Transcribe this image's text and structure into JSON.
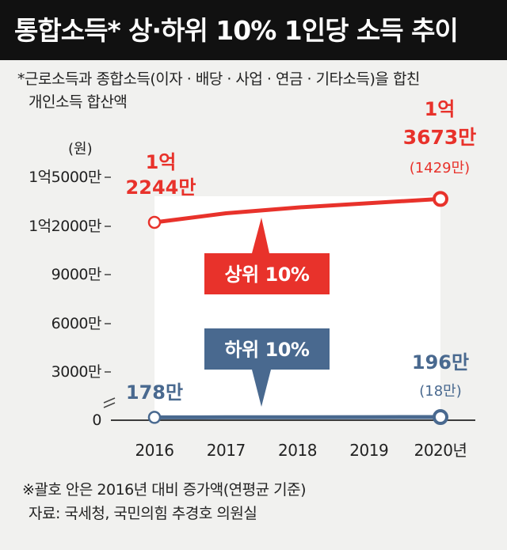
{
  "title": "통합소득* 상·하위 10% 1인당 소득 추이",
  "note": {
    "line1": "*근로소득과 종합소득(이자 · 배당 · 사업 · 연금 · 기타소득)을 합친",
    "line2": "개인소득 합산액"
  },
  "colors": {
    "top": "#e8322b",
    "bottom": "#49698f",
    "panel": "#ffffff",
    "background": "#f1f1ef"
  },
  "chart_data": {
    "type": "line",
    "ylabel": "(원)",
    "y_ticks": [
      {
        "value": 0,
        "label": "0"
      },
      {
        "value": 3000,
        "label": "3000만"
      },
      {
        "value": 6000,
        "label": "6000만"
      },
      {
        "value": 9000,
        "label": "9000만"
      },
      {
        "value": 12000,
        "label": "1억2000만"
      },
      {
        "value": 15000,
        "label": "1억5000만"
      }
    ],
    "x_labels": [
      "2016",
      "2017",
      "2018",
      "2019",
      "2020년"
    ],
    "x": [
      2016,
      2017,
      2018,
      2019,
      2020
    ],
    "axis_break": true,
    "series": [
      {
        "name": "상위 10%",
        "color": "#e8322b",
        "values": [
          12244,
          12800,
          13150,
          13420,
          13673
        ],
        "start_label": [
          "1억",
          "2244만"
        ],
        "end_label": [
          "1억",
          "3673만"
        ],
        "change_label": "(1429만)"
      },
      {
        "name": "하위 10%",
        "color": "#49698f",
        "values": [
          178,
          182,
          186,
          191,
          196
        ],
        "start_label": [
          "178만"
        ],
        "end_label": [
          "196만"
        ],
        "change_label": "(18만)"
      }
    ]
  },
  "footer": {
    "note": "※괄호 안은 2016년 대비 증가액(연평균 기준)",
    "source": "자료: 국세청, 국민의힘 추경호 의원실"
  }
}
